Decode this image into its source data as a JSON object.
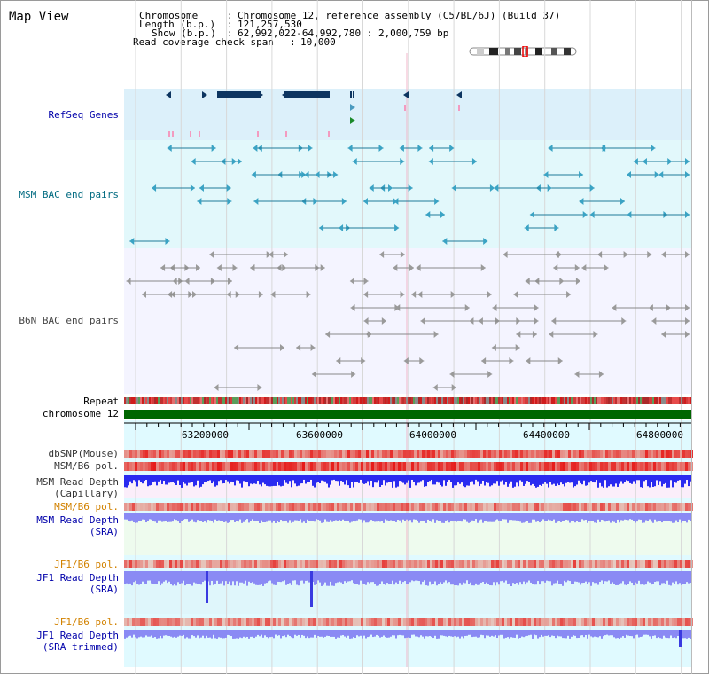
{
  "page_title": "Map View",
  "header": {
    "chromosome_label": "Chromosome",
    "chromosome_value": "Chromosome 12, reference assembly (C57BL/6J) (Build 37)",
    "length_label": "Length (b.p.)",
    "length_value": "121,257,530",
    "show_label": "Show (b.p.)",
    "show_value": "62,992,022-64,992,780 : 2,000,759 bp",
    "coverage_label": "Read coverage check span",
    "coverage_value": "10,000"
  },
  "tracks": {
    "refseq": "RefSeq Genes",
    "msm_bac": "MSM BAC end pairs",
    "b6n_bac": "B6N BAC end pairs",
    "repeat": "Repeat",
    "chromosome": "chromosome 12",
    "dbsnp": "dbSNP(Mouse)",
    "msm_pol": "MSM/B6 pol.",
    "msm_depth_cap_1": "MSM Read Depth",
    "msm_depth_cap_2": "(Capillary)",
    "msm_pol2": "MSM/B6 pol.",
    "msm_depth_sra_1": "MSM Read Depth",
    "msm_depth_sra_2": "(SRA)",
    "jf1_pol": "JF1/B6 pol.",
    "jf1_depth_1": "JF1 Read Depth",
    "jf1_depth_2": "(SRA)",
    "jf1_pol2": "JF1/B6 pol.",
    "jf1_trim_1": "JF1 Read Depth",
    "jf1_trim_2": "(SRA trimmed)"
  },
  "axis": {
    "ticks": [
      "63200000",
      "63600000",
      "64000000",
      "64400000",
      "64800000"
    ]
  },
  "colors": {
    "refseq_bg": "#dcf0fa",
    "msm_bg": "#e2f8fb",
    "b6n_bg": "#f4f4ff",
    "gene": "#0d3560",
    "msm_feature": "#1d7a98",
    "b6n_feature": "#6a6a6a",
    "chromosome": "#006600",
    "depth_bar": "#2a2af0",
    "depth_light": "#8a8af4",
    "label_blue": "#0000aa",
    "label_orange": "#d28200",
    "label_teal": "#006a80",
    "label_grey": "#333333"
  }
}
